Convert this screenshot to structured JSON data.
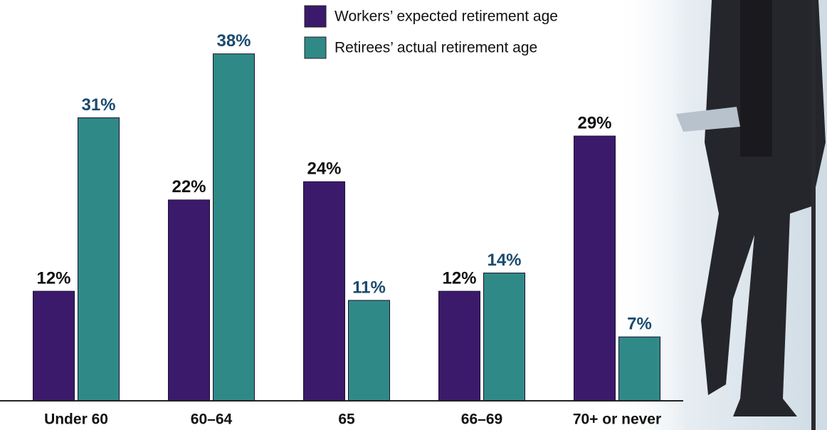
{
  "chart_data": {
    "type": "bar",
    "categories": [
      "Under 60",
      "60–64",
      "65",
      "66–69",
      "70+ or never"
    ],
    "series": [
      {
        "name": "Workers’ expected retirement age",
        "color": "#3b1a6b",
        "label_color": "#111111",
        "values": [
          12,
          22,
          24,
          12,
          29
        ],
        "value_labels": [
          "12%",
          "22%",
          "24%",
          "12%",
          "29%"
        ]
      },
      {
        "name": "Retirees’ actual retirement age",
        "color": "#2f8a87",
        "label_color": "#1b4a6e",
        "values": [
          31,
          38,
          11,
          14,
          7
        ],
        "value_labels": [
          "31%",
          "38%",
          "11%",
          "14%",
          "7%"
        ]
      }
    ],
    "ylim": [
      0,
      40
    ]
  }
}
